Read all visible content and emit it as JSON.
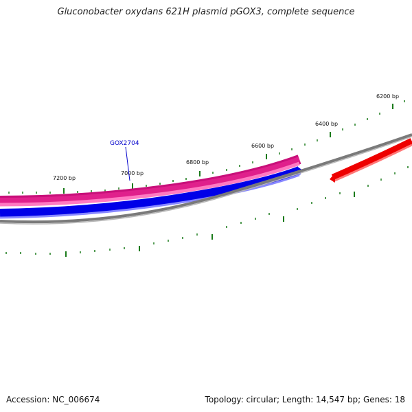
{
  "title": "Gluconobacter oxydans 621H plasmid pGOX3, complete sequence",
  "footer": {
    "accession": "Accession: NC_006674",
    "summary": "Topology: circular; Length: 14,547 bp; Genes: 18"
  },
  "ticks_inner": [
    {
      "bp": 7200,
      "label": "7200 bp"
    },
    {
      "bp": 7000,
      "label": "7000 bp"
    },
    {
      "bp": 6800,
      "label": "6800 bp"
    },
    {
      "bp": 6600,
      "label": "6600 bp"
    },
    {
      "bp": 6400,
      "label": "6400 bp"
    },
    {
      "bp": 6200,
      "label": "6200 bp"
    }
  ],
  "gene_labels": [
    {
      "text": "GOX2704"
    }
  ],
  "colors": {
    "magenta": "#e0208c",
    "pink": "#ff7ac2",
    "blue": "#0000e8",
    "red": "#ee0000",
    "gray": "#7a7a7a",
    "tick": "#1a7a1a",
    "label_line": "#0000cc"
  }
}
